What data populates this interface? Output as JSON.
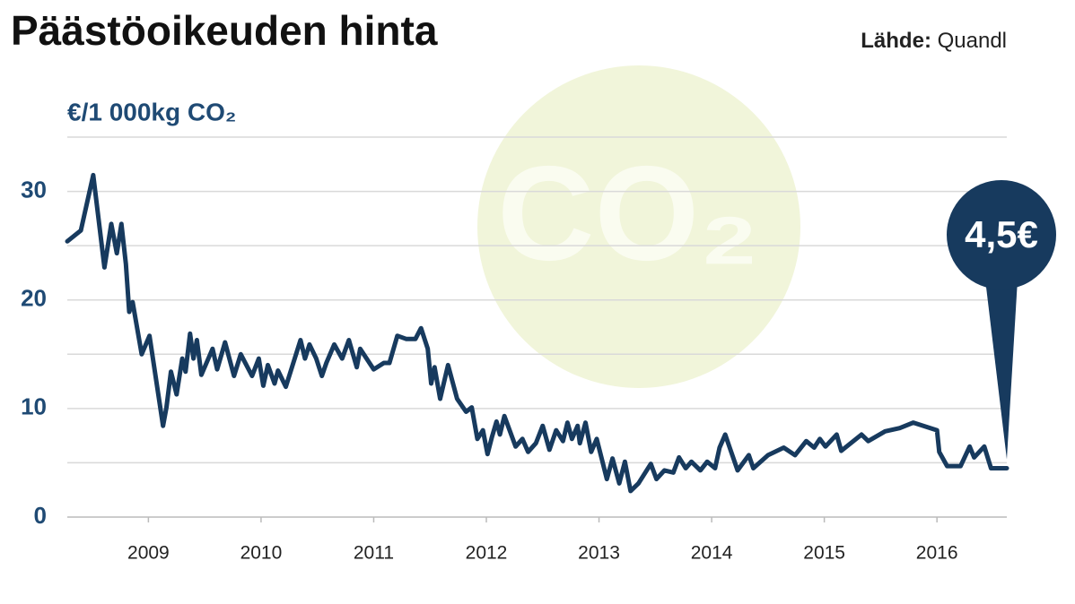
{
  "chart_data": {
    "type": "line",
    "title": "Päästöoikeuden hinta",
    "source_label": "Lähde:",
    "source": "Quandl",
    "y_label": "€/1 000kg CO₂",
    "watermark": "CO₂",
    "annotation": "4,5€",
    "xlim": [
      2008.28,
      2016.62
    ],
    "xticks": [
      2009,
      2010,
      2011,
      2012,
      2013,
      2014,
      2015,
      2016
    ],
    "ylim": [
      0,
      35
    ],
    "yticks": [
      0,
      10,
      20,
      30
    ],
    "minor_yticks": [
      5,
      15,
      25,
      35
    ],
    "grid": true,
    "x": [
      2008.28,
      2008.4,
      2008.51,
      2008.61,
      2008.67,
      2008.72,
      2008.76,
      2008.8,
      2008.83,
      2008.86,
      2008.94,
      2009.01,
      2009.13,
      2009.16,
      2009.2,
      2009.25,
      2009.3,
      2009.33,
      2009.37,
      2009.4,
      2009.43,
      2009.47,
      2009.57,
      2009.61,
      2009.68,
      2009.76,
      2009.82,
      2009.92,
      2009.98,
      2010.02,
      2010.06,
      2010.12,
      2010.15,
      2010.22,
      2010.35,
      2010.39,
      2010.43,
      2010.49,
      2010.54,
      2010.58,
      2010.65,
      2010.72,
      2010.78,
      2010.85,
      2010.88,
      2011.0,
      2011.09,
      2011.14,
      2011.21,
      2011.29,
      2011.37,
      2011.42,
      2011.48,
      2011.51,
      2011.54,
      2011.59,
      2011.66,
      2011.74,
      2011.82,
      2011.87,
      2011.92,
      2011.97,
      2012.01,
      2012.05,
      2012.09,
      2012.12,
      2012.16,
      2012.26,
      2012.32,
      2012.37,
      2012.44,
      2012.5,
      2012.56,
      2012.62,
      2012.68,
      2012.72,
      2012.76,
      2012.81,
      2012.83,
      2012.88,
      2012.93,
      2012.98,
      2013.07,
      2013.12,
      2013.18,
      2013.23,
      2013.28,
      2013.35,
      2013.46,
      2013.51,
      2013.58,
      2013.66,
      2013.71,
      2013.77,
      2013.82,
      2013.9,
      2013.96,
      2014.03,
      2014.07,
      2014.12,
      2014.16,
      2014.23,
      2014.33,
      2014.37,
      2014.5,
      2014.64,
      2014.74,
      2014.84,
      2014.91,
      2014.96,
      2015.01,
      2015.11,
      2015.15,
      2015.33,
      2015.39,
      2015.54,
      2015.67,
      2015.79,
      2016.0,
      2016.02,
      2016.09,
      2016.21,
      2016.29,
      2016.33,
      2016.42,
      2016.48,
      2016.62
    ],
    "series": [
      {
        "name": "Päästöoikeuden hinta",
        "color": "#173a5e",
        "values": [
          25.4,
          26.4,
          31.5,
          23,
          27,
          24.3,
          27,
          23.3,
          18.9,
          19.8,
          15,
          16.7,
          8.4,
          10.1,
          13.4,
          11.3,
          14.6,
          13.4,
          16.9,
          14.6,
          16.3,
          13.1,
          15.5,
          13.6,
          16.1,
          13,
          15,
          13,
          14.6,
          12.1,
          14,
          12.3,
          13.5,
          12,
          16.3,
          14.6,
          15.9,
          14.6,
          13,
          14.2,
          15.9,
          14.6,
          16.3,
          13.8,
          15.5,
          13.6,
          14.2,
          14.2,
          16.7,
          16.4,
          16.4,
          17.4,
          15.5,
          12.3,
          13.8,
          10.9,
          14,
          10.9,
          9.7,
          10.1,
          7.2,
          8,
          5.8,
          7.4,
          8.8,
          7.6,
          9.3,
          6.5,
          7.2,
          6,
          6.8,
          8.4,
          6.2,
          8,
          7,
          8.7,
          7.2,
          8.4,
          6.8,
          8.7,
          6,
          7.2,
          3.5,
          5.4,
          3.1,
          5.1,
          2.4,
          3.1,
          4.9,
          3.5,
          4.3,
          4.1,
          5.5,
          4.5,
          5.1,
          4.3,
          5.1,
          4.5,
          6.4,
          7.6,
          6.4,
          4.3,
          5.7,
          4.5,
          5.7,
          6.4,
          5.7,
          7,
          6.4,
          7.2,
          6.5,
          7.6,
          6.1,
          7.6,
          7,
          7.9,
          8.2,
          8.7,
          8,
          6,
          4.7,
          4.7,
          6.5,
          5.5,
          6.5,
          4.5,
          4.5
        ]
      }
    ]
  }
}
